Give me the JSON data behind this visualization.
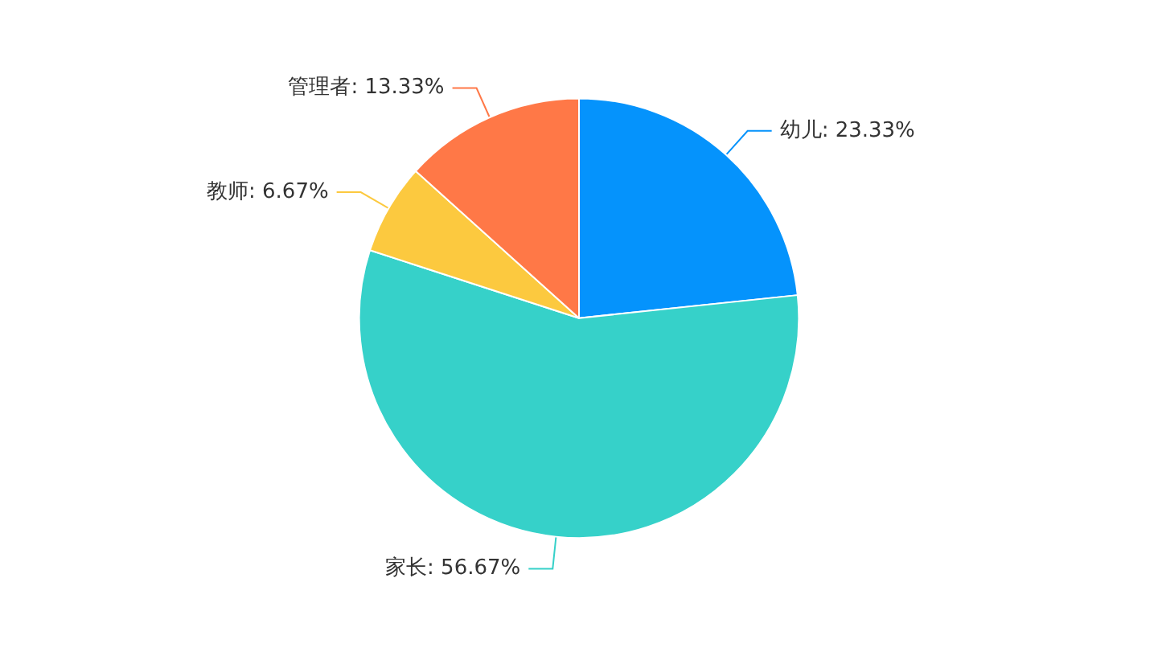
{
  "chart_data": {
    "type": "pie",
    "categories": [
      "幼儿",
      "家长",
      "教师",
      "管理者"
    ],
    "values": [
      23.33,
      56.67,
      6.67,
      13.33
    ],
    "value_labels": [
      "23.33%",
      "56.67%",
      "6.67%",
      "13.33%"
    ],
    "colors": [
      "#0593fc",
      "#36d1c9",
      "#fcc93f",
      "#ff7847"
    ]
  }
}
